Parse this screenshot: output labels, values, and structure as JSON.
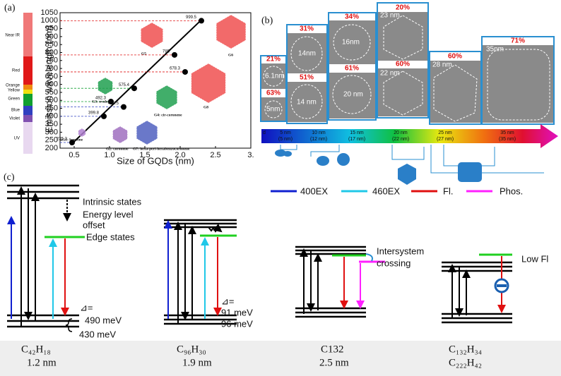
{
  "chart_data": {
    "type": "scatter",
    "x_label": "Size of GQDs (nm)",
    "y_label": "Emission wavelength (nm)",
    "x": [
      0.47,
      0.92,
      1.02,
      1.2,
      1.35,
      1.92,
      2.07,
      2.3
    ],
    "values": [
      235.3,
      399.8,
      492.3,
      458.5,
      575.4,
      785,
      678.3,
      999.5
    ],
    "color": "#000000",
    "label_colors": [
      "#3040c0",
      "#3040c0",
      "#10a030",
      "#3040c0",
      "#10a030",
      "#e01818",
      "#e01818",
      "#e01818"
    ],
    "fit": {
      "x": [
        0.45,
        2.3
      ],
      "y": [
        220,
        1005
      ]
    },
    "xlim": [
      0.3,
      3.0
    ],
    "ylim": [
      200,
      1050
    ],
    "xticks": [
      0.5,
      {
        "value": 1,
        "label": "1.0"
      },
      1.5,
      {
        "value": 2,
        "label": "2.0"
      },
      2.5,
      {
        "value": 3,
        "label": "3."
      }
    ],
    "yticks": [
      200,
      250,
      300,
      350,
      400,
      450,
      500,
      550,
      600,
      650,
      700,
      750,
      800,
      850,
      900,
      950,
      1000,
      1050
    ]
  },
  "panels": {
    "a": "(a)",
    "b": "(b)",
    "c": "(c)"
  },
  "spectrum": [
    "Near IR",
    "Red",
    "Orange",
    "Yellow",
    "Green",
    "Blue",
    "Violet",
    "UV"
  ],
  "molecules": [
    "G5",
    "G6",
    "G8",
    "G3: ovalene",
    "G4: cir-coronene",
    "G1: benzene",
    "G2: coronene",
    "G7: hexa-peri-hexabenzocoronene"
  ],
  "tem": [
    {
      "percent": "21%",
      "size": "6.1nm"
    },
    {
      "percent": "63%",
      "size": "5nm"
    },
    {
      "percent": "31%",
      "size": "14nm"
    },
    {
      "percent": "51%",
      "size": "14 nm"
    },
    {
      "percent": "34%",
      "size": "16nm"
    },
    {
      "percent": "61%",
      "size": "20 nm"
    },
    {
      "percent": "20%",
      "size": "23 nm"
    },
    {
      "percent": "60%",
      "size": "22 nm"
    },
    {
      "percent": "60%",
      "size": "28 nm"
    },
    {
      "percent": "71%",
      "size": "35nm"
    }
  ],
  "arrow": [
    "d",
    "5 nm",
    "(5 nm)",
    "10 nm",
    "(12 nm)",
    "15 nm",
    "(17 nm)",
    "20 nm",
    "(22 nm)",
    "25 nm",
    "(27 nm)",
    "35 nm",
    "(35 nm)"
  ],
  "legend": [
    "400EX",
    "460EX",
    "Fl.",
    "Phos."
  ],
  "diagram": {
    "intrinsic": "Intrinsic states",
    "offset_1": "Energy level",
    "offset_2": "offset",
    "edge": "Edge states",
    "delta_1": "⊿=",
    "gap_1a": "490 meV",
    "gap_1b": "430 meV",
    "delta_2": "⊿=",
    "gap_2a": "91 meV",
    "gap_2b": "96 meV",
    "isc_1": "Intersystem",
    "isc_2": "crossing",
    "low_fl": "Low Fl"
  },
  "formulas": [
    {
      "formula": "C₄₂H₁₈",
      "size": "1.2 nm"
    },
    {
      "formula": "C₉₆H₃₀",
      "size": "1.9 nm"
    },
    {
      "formula": "C132",
      "size": "2.5 nm"
    },
    {
      "formula": "C₁₃₂H₃₄"
    },
    {
      "formula": "C₂₂₂H₄₂"
    }
  ]
}
